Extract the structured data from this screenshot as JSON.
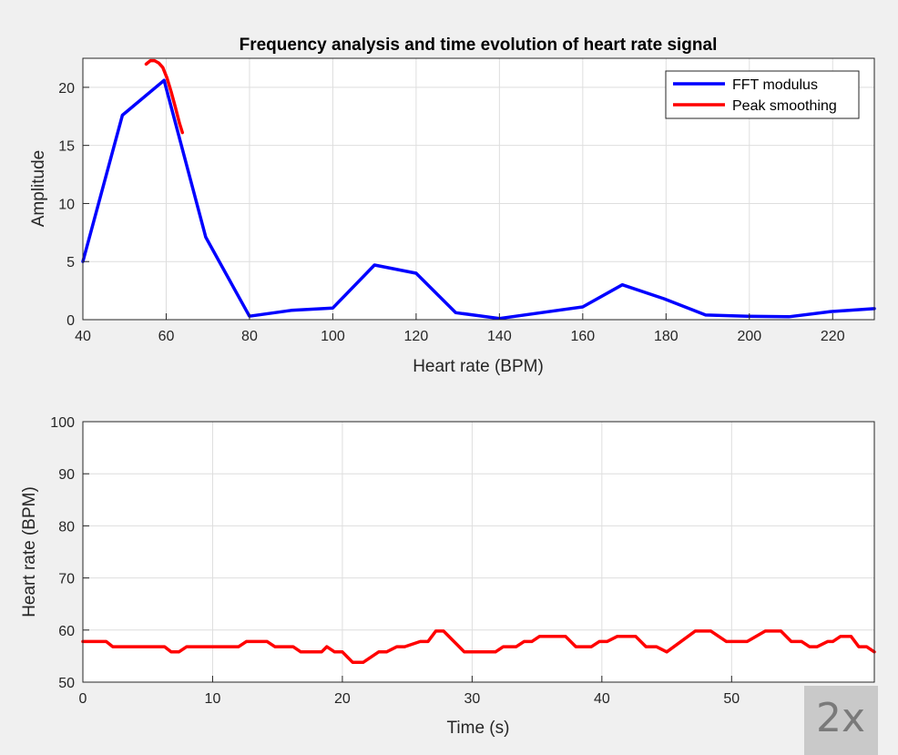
{
  "chart_data": [
    {
      "type": "line",
      "title": "Frequency analysis and time evolution of heart rate signal",
      "xlabel": "Heart rate (BPM)",
      "ylabel": "Amplitude",
      "xlim": [
        40,
        230
      ],
      "ylim": [
        0,
        22.5
      ],
      "xticks": [
        40,
        60,
        80,
        100,
        120,
        140,
        160,
        180,
        200,
        220
      ],
      "yticks": [
        0,
        5,
        10,
        15,
        20
      ],
      "grid": true,
      "legend_position": "top-right",
      "series": [
        {
          "name": "FFT modulus",
          "color": "#0000ff",
          "x": [
            40,
            49.5,
            59.5,
            69.5,
            80,
            90,
            100,
            110,
            120,
            129.5,
            140,
            160,
            169.5,
            179.5,
            189.5,
            199.5,
            209.5,
            219.5,
            230
          ],
          "y": [
            5,
            17.6,
            20.6,
            7.1,
            0.3,
            0.8,
            1.0,
            4.7,
            4.0,
            0.6,
            0.1,
            1.1,
            3.0,
            1.8,
            0.4,
            0.3,
            0.25,
            0.7,
            0.95
          ]
        },
        {
          "name": "Peak smoothing",
          "color": "#ff0000",
          "x": [
            55.2,
            56.2,
            57.2,
            58.2,
            59.2,
            60.2,
            61.2,
            62.2,
            63.2,
            63.9
          ],
          "y": [
            22.0,
            22.3,
            22.3,
            22.1,
            21.7,
            20.8,
            19.6,
            18.3,
            16.9,
            16.1
          ]
        }
      ]
    },
    {
      "type": "line",
      "title": "",
      "xlabel": "Time (s)",
      "ylabel": "Heart rate (BPM)",
      "xlim": [
        0,
        61
      ],
      "ylim": [
        50,
        100
      ],
      "xticks": [
        0,
        10,
        20,
        30,
        40,
        50
      ],
      "yticks": [
        50,
        60,
        70,
        80,
        90,
        100
      ],
      "grid": true,
      "series": [
        {
          "color": "#ff0000",
          "x": [
            0,
            1.8,
            2.3,
            6.3,
            6.8,
            7.4,
            8,
            12,
            12.6,
            14.2,
            14.8,
            16.2,
            16.8,
            18.4,
            18.8,
            19.4,
            20,
            20.8,
            21.6,
            22.8,
            23.4,
            24.2,
            24.8,
            26,
            26.6,
            27.2,
            27.8,
            29.4,
            30,
            31.8,
            32.4,
            33.4,
            34,
            34.6,
            35.2,
            37.2,
            38,
            39.2,
            39.8,
            40.4,
            41.2,
            42.6,
            43.4,
            44.2,
            45,
            47.2,
            48.4,
            49.6,
            51.2,
            52.6,
            53.8,
            54.6,
            55.4,
            56,
            56.6,
            57.4,
            57.8,
            58.4,
            59.2,
            59.8,
            60.4,
            61
          ],
          "y": [
            57.8,
            57.8,
            56.8,
            56.8,
            55.8,
            55.8,
            56.8,
            56.8,
            57.8,
            57.8,
            56.8,
            56.8,
            55.8,
            55.8,
            56.8,
            55.8,
            55.8,
            53.8,
            53.8,
            55.8,
            55.8,
            56.8,
            56.8,
            57.8,
            57.8,
            59.8,
            59.8,
            55.8,
            55.8,
            55.8,
            56.8,
            56.8,
            57.8,
            57.8,
            58.8,
            58.8,
            56.8,
            56.8,
            57.8,
            57.8,
            58.8,
            58.8,
            56.8,
            56.8,
            55.8,
            59.8,
            59.8,
            57.8,
            57.8,
            59.8,
            59.8,
            57.8,
            57.8,
            56.8,
            56.8,
            57.8,
            57.8,
            58.8,
            58.8,
            56.8,
            56.8,
            55.8
          ]
        }
      ]
    }
  ],
  "badge": {
    "label": "2x"
  }
}
